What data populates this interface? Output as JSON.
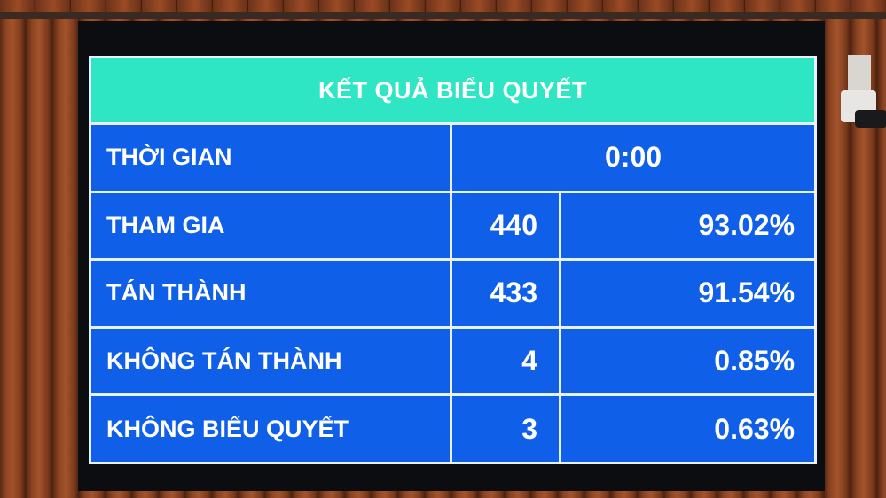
{
  "board": {
    "title": "KẾT QUẢ BIỂU QUYẾT",
    "time_label": "THỜI GIAN",
    "time_value": "0:00",
    "rows": [
      {
        "label": "THAM GIA",
        "count": "440",
        "percent": "93.02%"
      },
      {
        "label": "TÁN THÀNH",
        "count": "433",
        "percent": "91.54%"
      },
      {
        "label": "KHÔNG TÁN THÀNH",
        "count": "4",
        "percent": "0.85%"
      },
      {
        "label": "KHÔNG BIỂU QUYẾT",
        "count": "3",
        "percent": "0.63%"
      }
    ]
  },
  "colors": {
    "header": "#2ee6c4",
    "cells": "#0f5fe8",
    "text": "#ffffff"
  }
}
